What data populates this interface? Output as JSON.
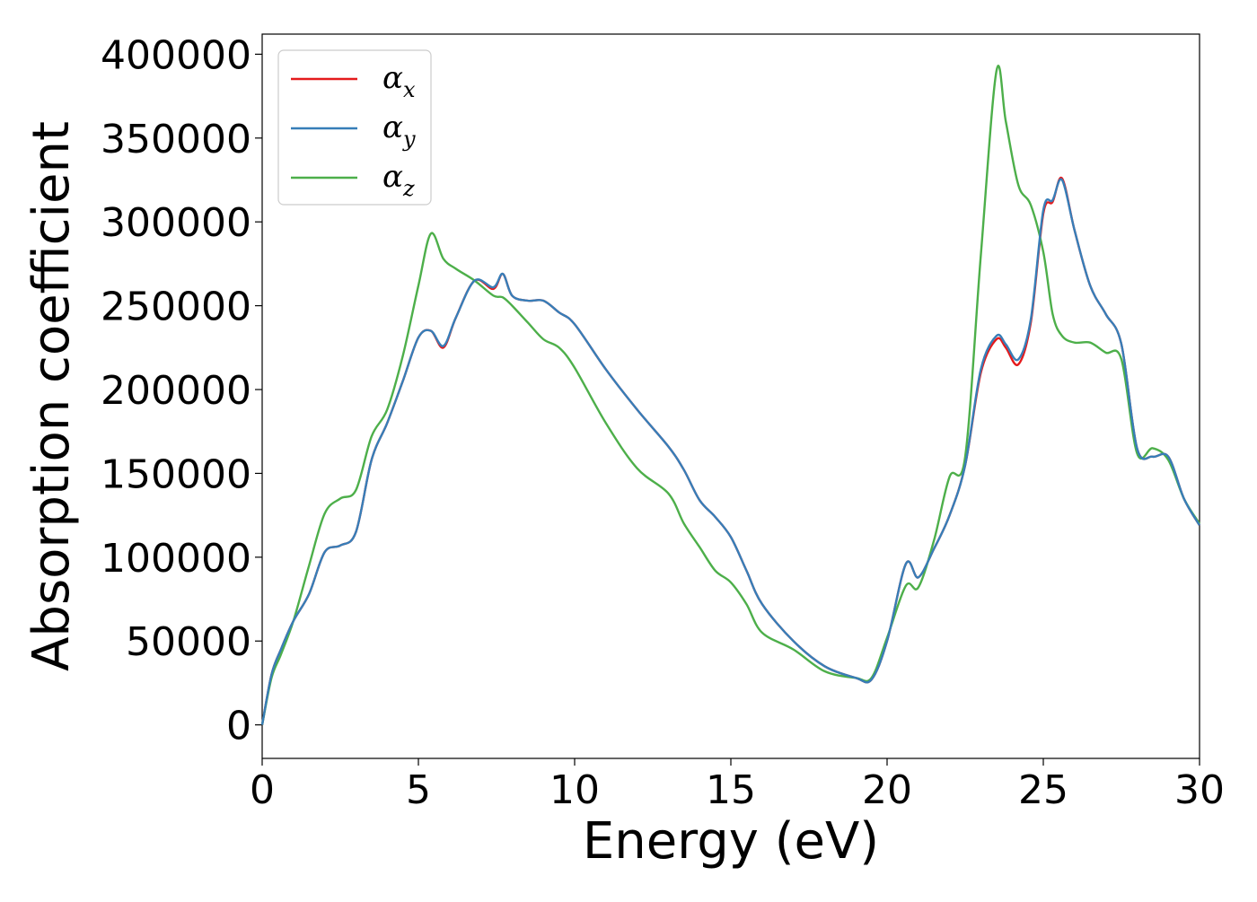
{
  "chart_data": {
    "type": "line",
    "title": "",
    "xlabel": "Energy (eV)",
    "ylabel": "Absorption coefficient",
    "xlim": [
      0,
      30
    ],
    "ylim": [
      -20000,
      412000
    ],
    "xticks": [
      0,
      5,
      10,
      15,
      20,
      25,
      30
    ],
    "yticks": [
      0,
      50000,
      100000,
      150000,
      200000,
      250000,
      300000,
      350000,
      400000
    ],
    "grid": false,
    "legend_position": "top-left",
    "series": [
      {
        "name": "α",
        "subscript": "x",
        "color": "#e41a1c",
        "x": [
          0,
          0.3,
          0.6,
          1,
          1.5,
          2,
          2.5,
          3,
          3.5,
          4,
          4.5,
          5,
          5.4,
          5.8,
          6.2,
          6.8,
          7.4,
          7.7,
          8,
          8.5,
          9,
          9.5,
          10,
          11,
          12,
          13,
          13.5,
          14,
          14.5,
          15,
          15.5,
          16,
          17,
          18,
          19,
          19.5,
          20,
          20.6,
          21,
          21.5,
          22,
          22.5,
          23,
          23.5,
          23.8,
          24.2,
          24.6,
          25,
          25.3,
          25.6,
          26,
          26.5,
          27,
          27.5,
          28,
          28.5,
          29,
          29.5,
          30
        ],
        "y": [
          0,
          30000,
          45000,
          62000,
          78000,
          103000,
          107000,
          115000,
          158000,
          180000,
          205000,
          231000,
          235000,
          225000,
          243000,
          265000,
          260000,
          269000,
          256000,
          253000,
          253000,
          246000,
          239000,
          212000,
          188000,
          166000,
          152000,
          134000,
          124000,
          112000,
          92000,
          72000,
          50000,
          35000,
          28000,
          27000,
          50000,
          96000,
          88000,
          105000,
          125000,
          155000,
          210000,
          230000,
          225000,
          215000,
          240000,
          305000,
          312000,
          326000,
          295000,
          262000,
          245000,
          227000,
          165000,
          160000,
          160000,
          135000,
          119000
        ]
      },
      {
        "name": "α",
        "subscript": "y",
        "color": "#377eb8",
        "x": [
          0,
          0.3,
          0.6,
          1,
          1.5,
          2,
          2.5,
          3,
          3.5,
          4,
          4.5,
          5,
          5.4,
          5.8,
          6.2,
          6.8,
          7.4,
          7.7,
          8,
          8.5,
          9,
          9.5,
          10,
          11,
          12,
          13,
          13.5,
          14,
          14.5,
          15,
          15.5,
          16,
          17,
          18,
          19,
          19.5,
          20,
          20.6,
          21,
          21.5,
          22,
          22.5,
          23,
          23.5,
          23.8,
          24.2,
          24.6,
          25,
          25.3,
          25.6,
          26,
          26.5,
          27,
          27.5,
          28,
          28.5,
          29,
          29.5,
          30
        ],
        "y": [
          0,
          30000,
          45000,
          62000,
          78000,
          103000,
          107000,
          115000,
          158000,
          180000,
          205000,
          231000,
          235000,
          226000,
          243000,
          265000,
          261000,
          269000,
          256000,
          253000,
          253000,
          246000,
          239000,
          212000,
          188000,
          166000,
          152000,
          134000,
          124000,
          112000,
          92000,
          72000,
          50000,
          35000,
          28000,
          27000,
          50000,
          96000,
          88000,
          105000,
          125000,
          155000,
          212000,
          232000,
          227000,
          218000,
          242000,
          307000,
          313000,
          325000,
          295000,
          262000,
          245000,
          227000,
          165000,
          160000,
          160000,
          135000,
          119000
        ]
      },
      {
        "name": "α",
        "subscript": "z",
        "color": "#4daf4a",
        "x": [
          0,
          0.3,
          0.6,
          1,
          1.5,
          2,
          2.5,
          3,
          3.5,
          4,
          4.5,
          5,
          5.4,
          5.8,
          6.2,
          6.8,
          7.4,
          7.7,
          8,
          8.5,
          9,
          9.5,
          10,
          11,
          12,
          13,
          13.5,
          14,
          14.5,
          15,
          15.5,
          16,
          17,
          18,
          19,
          19.5,
          20,
          20.6,
          21,
          21.5,
          22,
          22.5,
          23,
          23.5,
          23.8,
          24.2,
          24.6,
          25,
          25.3,
          25.6,
          26,
          26.5,
          27,
          27.5,
          28,
          28.5,
          29,
          29.5,
          30
        ],
        "y": [
          0,
          28000,
          42000,
          62000,
          95000,
          126000,
          135000,
          140000,
          172000,
          188000,
          220000,
          262000,
          293000,
          278000,
          272000,
          265000,
          256000,
          255000,
          250000,
          240000,
          230000,
          225000,
          213000,
          180000,
          153000,
          138000,
          120000,
          106000,
          92000,
          85000,
          72000,
          55000,
          45000,
          32000,
          28000,
          28000,
          52000,
          83000,
          82000,
          110000,
          148000,
          160000,
          280000,
          390000,
          360000,
          322000,
          310000,
          282000,
          245000,
          232000,
          228000,
          228000,
          222000,
          218000,
          162000,
          165000,
          158000,
          135000,
          120000
        ]
      }
    ]
  }
}
